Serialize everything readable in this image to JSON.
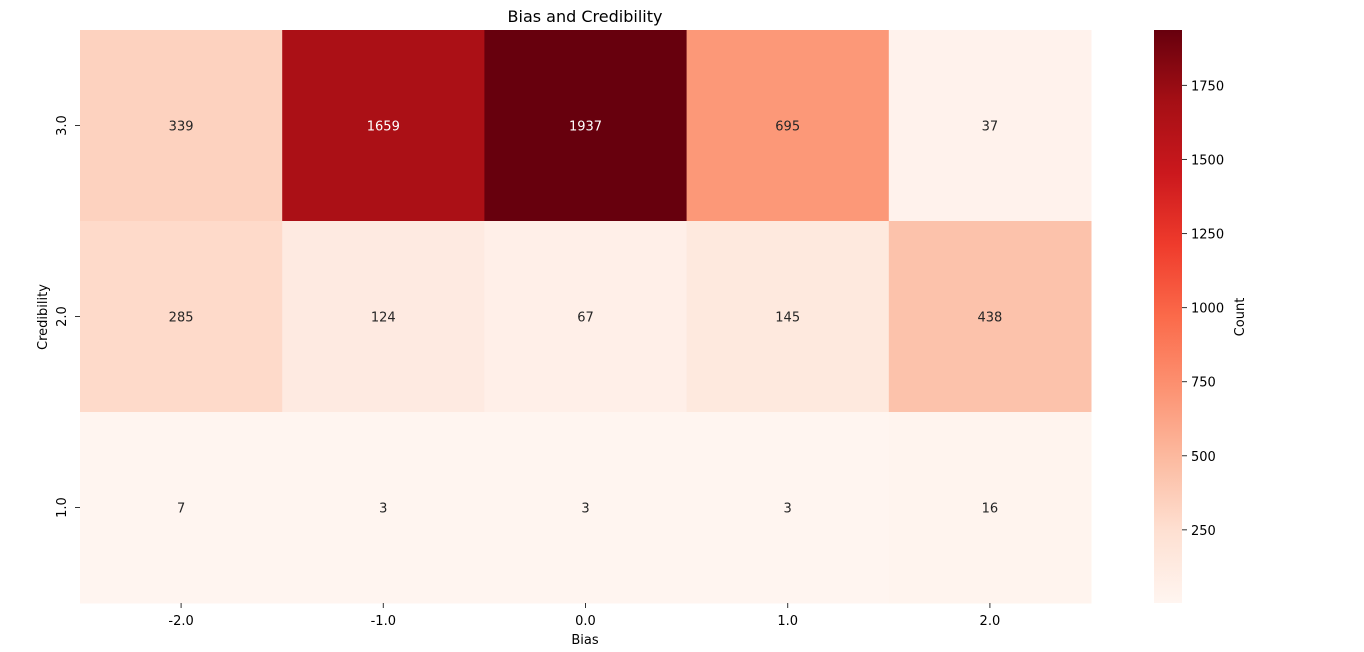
{
  "chart_data": {
    "type": "heatmap",
    "title": "Bias and Credibility",
    "xlabel": "Bias",
    "ylabel": "Credibility",
    "x_categories": [
      "-2.0",
      "-1.0",
      "0.0",
      "1.0",
      "2.0"
    ],
    "y_categories": [
      "3.0",
      "2.0",
      "1.0"
    ],
    "values": [
      [
        339,
        1659,
        1937,
        695,
        37
      ],
      [
        285,
        124,
        67,
        145,
        438
      ],
      [
        7,
        3,
        3,
        3,
        16
      ]
    ],
    "colormap": "Reds",
    "vmin": 3,
    "vmax": 1937,
    "colorbar": {
      "label": "Count",
      "ticks": [
        250,
        500,
        750,
        1000,
        1250,
        1500,
        1750
      ],
      "tick_labels": [
        "250",
        "500",
        "750",
        "1000",
        "1250",
        "1500",
        "1750"
      ]
    }
  }
}
